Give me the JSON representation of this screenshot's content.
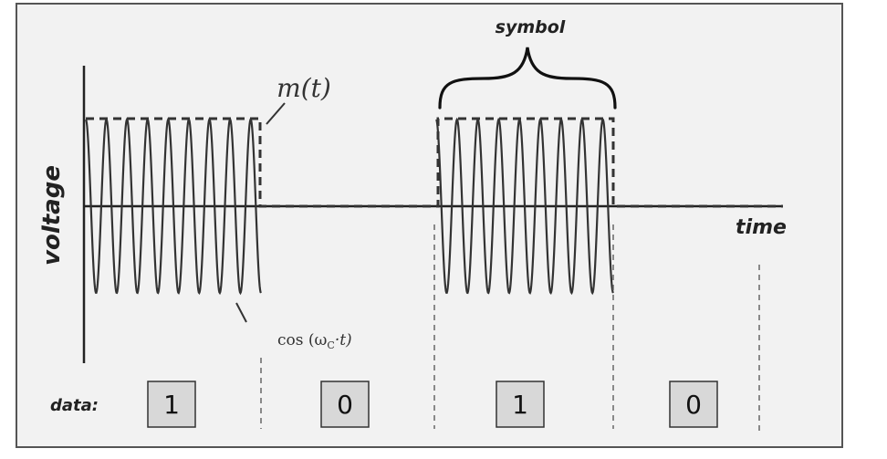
{
  "labels": {
    "y_axis": "voltage",
    "x_axis": "time",
    "envelope": "m(t)",
    "carrier_prefix": "cos (ω",
    "carrier_subscript": "C",
    "carrier_suffix": "·t)",
    "symbol": "symbol",
    "data": "data:"
  },
  "bits": [
    "1",
    "0",
    "1",
    "0"
  ],
  "colors": {
    "frame_fill": "#f2f2f2",
    "box_fill": "#d8d8d8",
    "ink": "#333333"
  }
}
